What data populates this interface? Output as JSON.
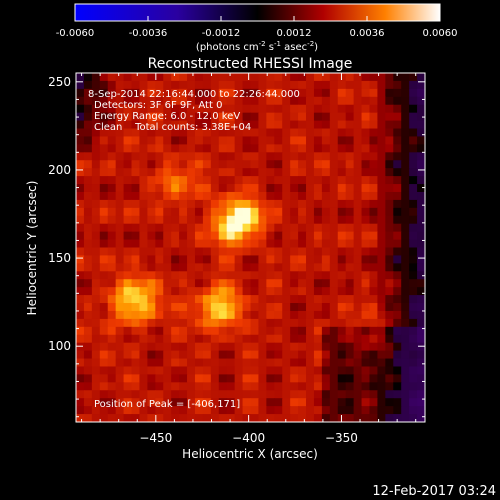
{
  "colorbar": {
    "ticks": [
      "-0.0060",
      "-0.0036",
      "-0.0012",
      "0.0012",
      "0.0036",
      "0.0060"
    ],
    "units_main": "(photons cm",
    "units_exp1": "-2",
    "units_mid": " s",
    "units_exp2": "-1",
    "units_end": " asec",
    "units_exp3": "-2",
    "units_close": ")",
    "range": [
      -0.006,
      0.006
    ]
  },
  "chart_data": {
    "type": "heatmap",
    "title": "Reconstructed RHESSI Image",
    "xlabel": "Heliocentric X (arcsec)",
    "ylabel": "Heliocentric Y (arcsec)",
    "xlim": [
      -493,
      -305
    ],
    "ylim": [
      57,
      255
    ],
    "xticks": [
      -450,
      -400,
      -350
    ],
    "yticks": [
      100,
      150,
      200,
      250
    ],
    "annotations": [
      "8-Sep-2014 22:16:44.000 to 22:26:44.000",
      "Detectors: 3F 6F 9F, Att 0",
      "Energy Range: 6.0 - 12.0 keV",
      "Clean    Total counts: 3.38E+04"
    ],
    "peak_label": "Position of Peak = [-406,171]",
    "sources": [
      {
        "x": -406,
        "y": 171,
        "intensity": 1.0
      },
      {
        "x": -462,
        "y": 125,
        "intensity": 0.78
      },
      {
        "x": -416,
        "y": 122,
        "intensity": 0.7
      },
      {
        "x": -440,
        "y": 195,
        "intensity": 0.35
      },
      {
        "x": -330,
        "y": 105,
        "intensity": 0.3
      }
    ]
  },
  "timestamp": "12-Feb-2017 03:24"
}
